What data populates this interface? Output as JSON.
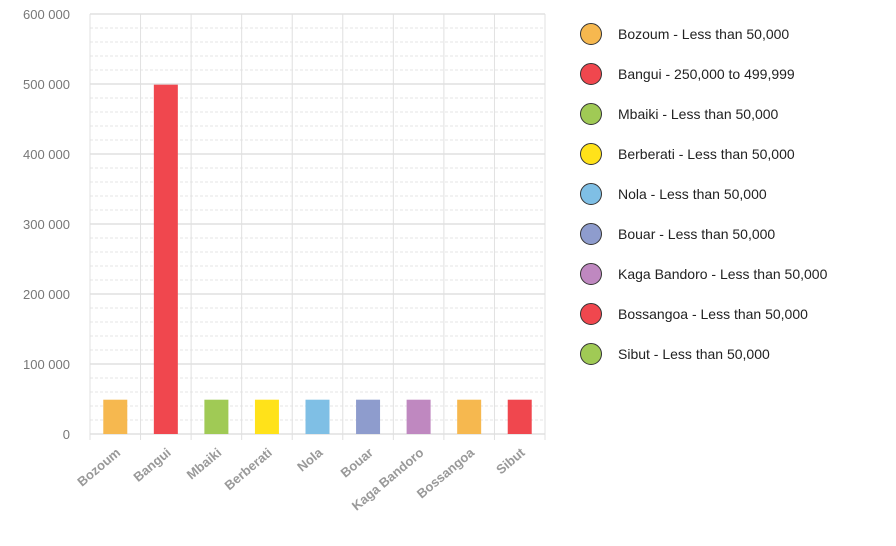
{
  "chart_data": {
    "type": "bar",
    "categories": [
      "Bozoum",
      "Bangui",
      "Mbaiki",
      "Berberati",
      "Nola",
      "Bouar",
      "Kaga Bandoro",
      "Bossangoa",
      "Sibut"
    ],
    "values": [
      49000,
      499000,
      49000,
      49000,
      49000,
      49000,
      49000,
      49000,
      49000
    ],
    "colors": [
      "#f6b84f",
      "#f0474e",
      "#a0ca55",
      "#ffe21a",
      "#7fbfe5",
      "#8e9ccd",
      "#bf88c0",
      "#f6b84f",
      "#f0474e"
    ],
    "ylim": [
      0,
      600000
    ],
    "yticks": [
      0,
      100000,
      200000,
      300000,
      400000,
      500000,
      600000
    ],
    "ytick_labels": [
      "0",
      "100 000",
      "200 000",
      "300 000",
      "400 000",
      "500 000",
      "600 000"
    ],
    "grid": true,
    "legend_position": "right",
    "legend": [
      {
        "label": "Bozoum - Less than 50,000",
        "color": "#f6b84f"
      },
      {
        "label": "Bangui - 250,000 to 499,999",
        "color": "#f0474e"
      },
      {
        "label": "Mbaiki - Less than 50,000",
        "color": "#a0ca55"
      },
      {
        "label": "Berberati - Less than 50,000",
        "color": "#ffe21a"
      },
      {
        "label": "Nola - Less than 50,000",
        "color": "#7fbfe5"
      },
      {
        "label": "Bouar - Less than 50,000",
        "color": "#8e9ccd"
      },
      {
        "label": "Kaga Bandoro - Less than 50,000",
        "color": "#bf88c0"
      },
      {
        "label": "Bossangoa - Less than 50,000",
        "color": "#f0474e"
      },
      {
        "label": "Sibut - Less than 50,000",
        "color": "#a0ca55"
      }
    ]
  }
}
